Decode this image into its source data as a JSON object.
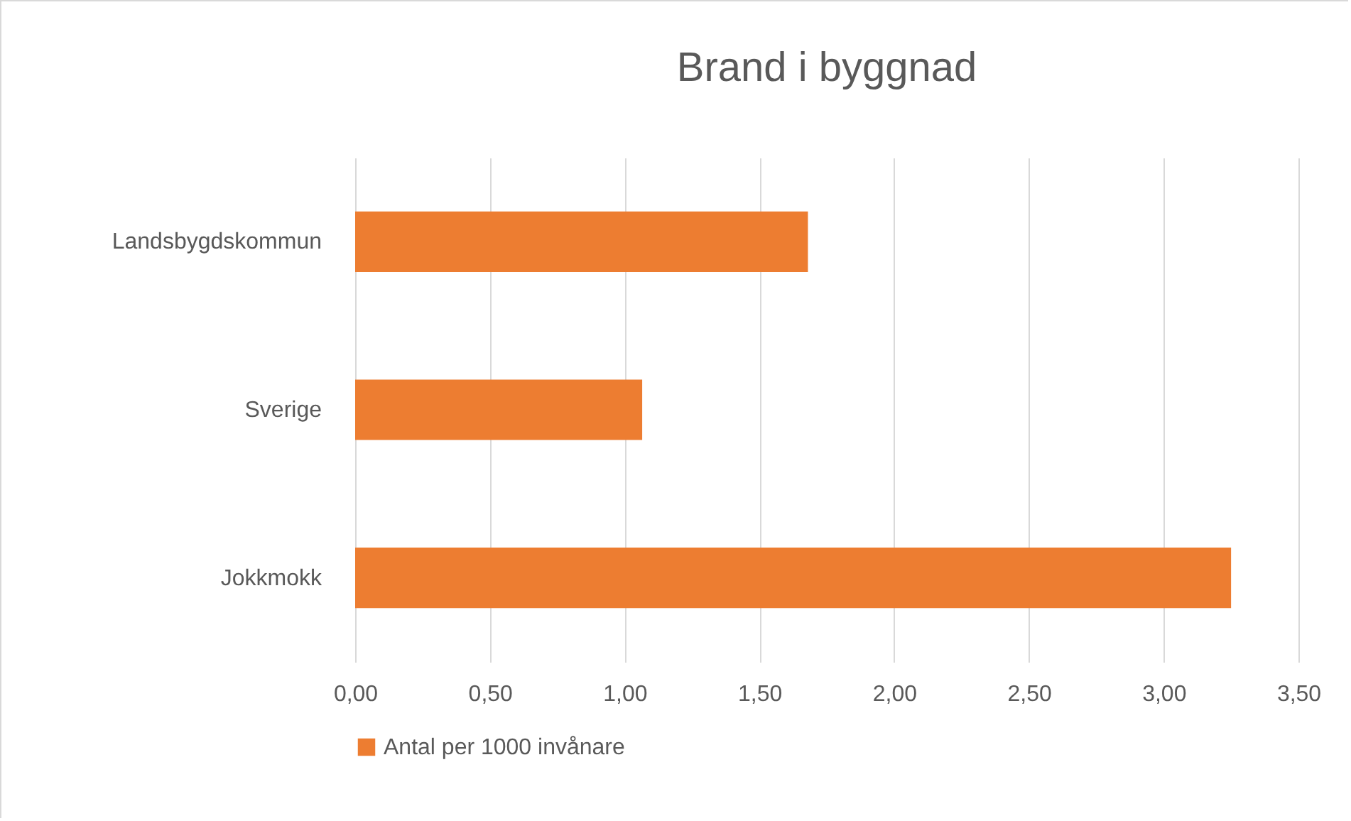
{
  "chart_data": {
    "type": "bar",
    "orientation": "horizontal",
    "title": "Brand i byggnad",
    "categories": [
      "Landsbygdskommun",
      "Sverige",
      "Jokkmokk"
    ],
    "series": [
      {
        "name": "Antal per 1000 invånare",
        "color": "#ed7d31",
        "values": [
          1.68,
          1.065,
          3.25
        ]
      }
    ],
    "xlim": [
      0,
      3.5
    ],
    "xticks": [
      {
        "value": 0,
        "label": "0,00"
      },
      {
        "value": 0.5,
        "label": "0,50"
      },
      {
        "value": 1,
        "label": "1,00"
      },
      {
        "value": 1.5,
        "label": "1,50"
      },
      {
        "value": 2,
        "label": "2,00"
      },
      {
        "value": 2.5,
        "label": "2,50"
      },
      {
        "value": 3,
        "label": "3,00"
      },
      {
        "value": 3.5,
        "label": "3,50"
      }
    ],
    "grid": "x",
    "legend": "bottom"
  }
}
